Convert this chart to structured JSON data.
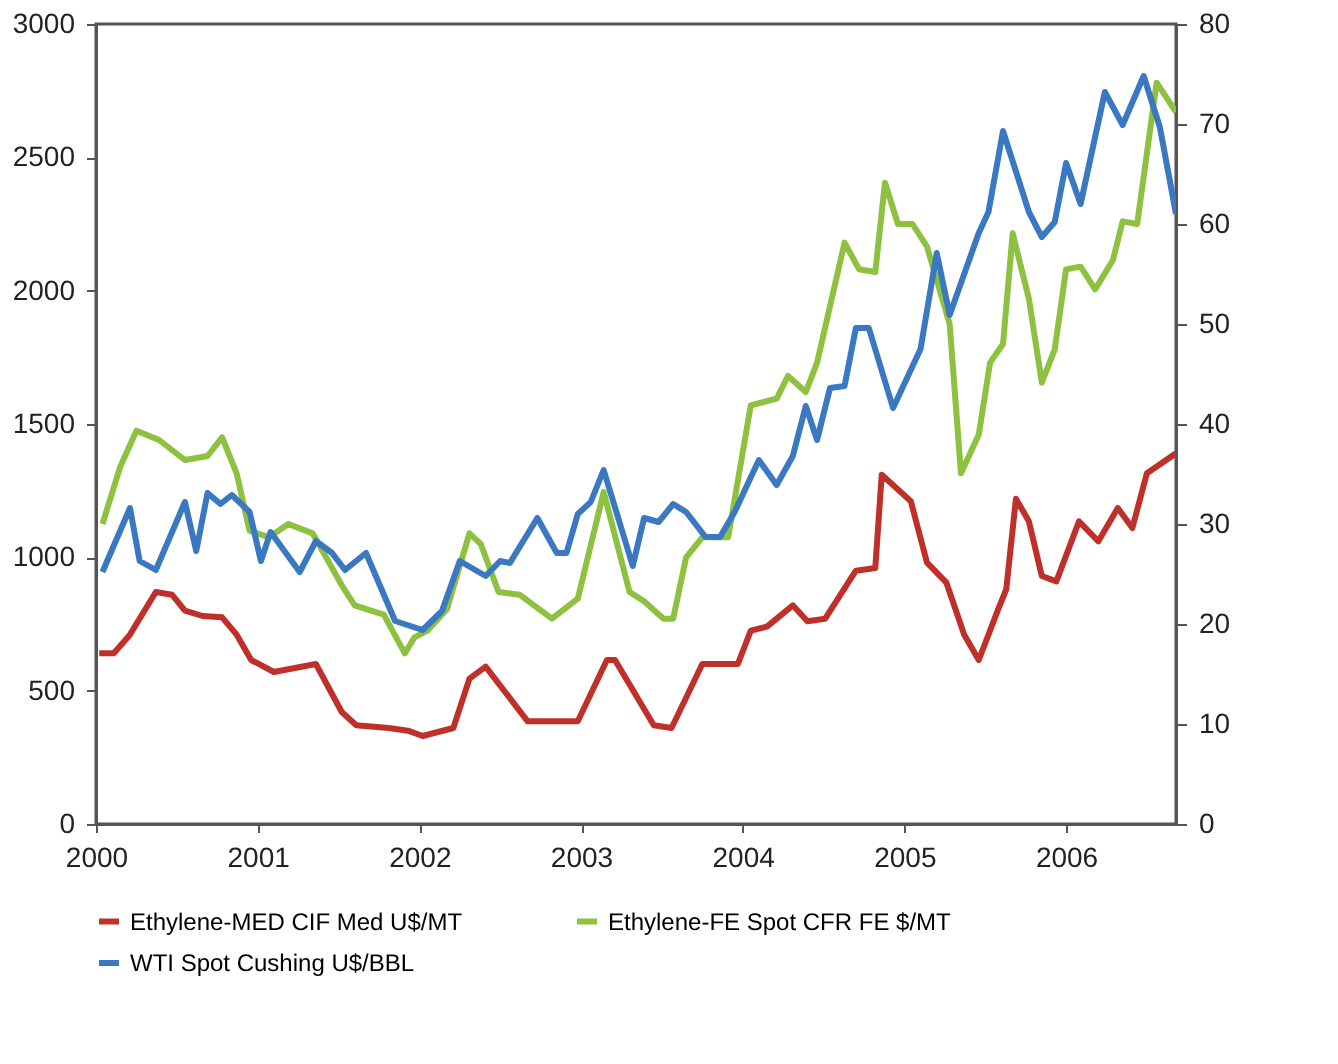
{
  "chart_data": {
    "type": "line",
    "xlim": [
      2000,
      2006.68
    ],
    "xticks": [
      2000,
      2001,
      2002,
      2003,
      2004,
      2005,
      2006
    ],
    "ylim": [
      0,
      3000
    ],
    "yticks": [
      0,
      500,
      1000,
      1500,
      2000,
      2500,
      3000
    ],
    "y2lim": [
      0,
      80
    ],
    "y2ticks": [
      0,
      10,
      20,
      30,
      40,
      50,
      60,
      70,
      80
    ],
    "grid": false,
    "legend": "bottom",
    "series": [
      {
        "name": "Ethylene-MED CIF Med U$/MT",
        "color": "#c0302b",
        "x": [
          2000.02,
          2000.11,
          2000.21,
          2000.37,
          2000.47,
          2000.55,
          2000.66,
          2000.78,
          2000.87,
          2000.96,
          2001.1,
          2001.36,
          2001.52,
          2001.61,
          2001.81,
          2001.93,
          2002.02,
          2002.21,
          2002.31,
          2002.41,
          2002.67,
          2002.98,
          2003.16,
          2003.21,
          2003.45,
          2003.56,
          2003.75,
          2003.97,
          2004.05,
          2004.15,
          2004.31,
          2004.4,
          2004.51,
          2004.7,
          2004.82,
          2004.86,
          2005.04,
          2005.14,
          2005.26,
          2005.37,
          2005.46,
          2005.58,
          2005.63,
          2005.69,
          2005.77,
          2005.85,
          2005.94,
          2006.08,
          2006.2,
          2006.32,
          2006.41,
          2006.5,
          2006.68
        ],
        "values": [
          640,
          640,
          710,
          870,
          860,
          800,
          780,
          775,
          710,
          615,
          570,
          600,
          420,
          370,
          360,
          350,
          330,
          360,
          545,
          590,
          385,
          385,
          615,
          615,
          370,
          360,
          600,
          600,
          725,
          740,
          820,
          760,
          770,
          950,
          960,
          1310,
          1210,
          980,
          905,
          710,
          615,
          805,
          880,
          1220,
          1135,
          930,
          910,
          1135,
          1060,
          1185,
          1110,
          1315,
          1390
        ]
      },
      {
        "name": "Ethylene-FE Spot CFR FE $/MT",
        "color": "#8dc13f",
        "x": [
          2000.04,
          2000.15,
          2000.25,
          2000.39,
          2000.55,
          2000.69,
          2000.78,
          2000.87,
          2000.95,
          2001.07,
          2001.19,
          2001.34,
          2001.52,
          2001.6,
          2001.78,
          2001.91,
          2001.97,
          2002.05,
          2002.17,
          2002.31,
          2002.38,
          2002.49,
          2002.62,
          2002.82,
          2002.98,
          2003.14,
          2003.3,
          2003.39,
          2003.51,
          2003.57,
          2003.65,
          2003.75,
          2003.91,
          2004.05,
          2004.21,
          2004.28,
          2004.39,
          2004.46,
          2004.63,
          2004.72,
          2004.82,
          2004.88,
          2004.96,
          2005.05,
          2005.14,
          2005.28,
          2005.35,
          2005.46,
          2005.53,
          2005.61,
          2005.67,
          2005.77,
          2005.85,
          2005.93,
          2006.0,
          2006.09,
          2006.18,
          2006.29,
          2006.35,
          2006.44,
          2006.56,
          2006.68
        ],
        "values": [
          1125,
          1340,
          1475,
          1440,
          1365,
          1380,
          1450,
          1315,
          1100,
          1075,
          1125,
          1090,
          895,
          820,
          785,
          640,
          700,
          725,
          805,
          1090,
          1050,
          870,
          860,
          770,
          845,
          1245,
          870,
          835,
          770,
          770,
          1000,
          1075,
          1075,
          1570,
          1595,
          1680,
          1620,
          1730,
          2180,
          2080,
          2070,
          2405,
          2250,
          2250,
          2165,
          1875,
          1315,
          1460,
          1730,
          1800,
          2215,
          1970,
          1655,
          1780,
          2080,
          2090,
          2005,
          2115,
          2260,
          2250,
          2780,
          2670
        ]
      },
      {
        "name": "WTI Spot Cushing U$/BBL",
        "color": "#3a78c2",
        "axis": "y2",
        "x": [
          2000.04,
          2000.21,
          2000.27,
          2000.37,
          2000.55,
          2000.62,
          2000.69,
          2000.77,
          2000.84,
          2000.95,
          2001.02,
          2001.08,
          2001.26,
          2001.36,
          2001.46,
          2001.54,
          2001.67,
          2001.85,
          2002.02,
          2002.14,
          2002.25,
          2002.41,
          2002.5,
          2002.56,
          2002.73,
          2002.85,
          2002.91,
          2002.98,
          2003.06,
          2003.14,
          2003.32,
          2003.39,
          2003.48,
          2003.57,
          2003.65,
          2003.77,
          2003.86,
          2003.95,
          2004.1,
          2004.21,
          2004.31,
          2004.39,
          2004.46,
          2004.54,
          2004.63,
          2004.7,
          2004.78,
          2004.93,
          2005.1,
          2005.2,
          2005.28,
          2005.46,
          2005.52,
          2005.61,
          2005.77,
          2005.85,
          2005.93,
          2006.0,
          2006.09,
          2006.24,
          2006.35,
          2006.48,
          2006.58,
          2006.68
        ],
        "values": [
          25.2,
          31.6,
          26.3,
          25.4,
          32.2,
          27.3,
          33.1,
          32.0,
          32.9,
          31.2,
          26.3,
          29.2,
          25.2,
          28.3,
          27.1,
          25.4,
          27.1,
          20.3,
          19.4,
          21.3,
          26.3,
          24.8,
          26.3,
          26.1,
          30.6,
          27.1,
          27.1,
          31.0,
          32.2,
          35.4,
          25.8,
          30.6,
          30.2,
          32.0,
          31.2,
          28.7,
          28.7,
          31.2,
          36.4,
          33.9,
          36.8,
          41.8,
          38.4,
          43.6,
          43.8,
          49.6,
          49.6,
          41.6,
          47.5,
          57.1,
          50.9,
          59.1,
          61.2,
          69.3,
          61.2,
          58.7,
          60.2,
          66.1,
          62.0,
          73.2,
          69.9,
          74.8,
          69.7,
          61.0
        ]
      }
    ]
  }
}
